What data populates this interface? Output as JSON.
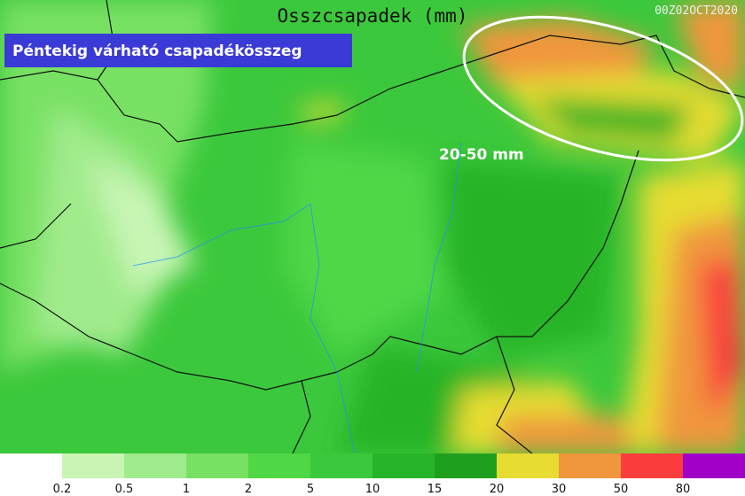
{
  "map": {
    "title": "Osszcsapadek (mm)",
    "timestamp": "00Z02OCT2020",
    "caption": "Péntekig várható csapadékösszeg",
    "annotation": "20-50 mm"
  },
  "legend": {
    "colors": [
      "#ffffff",
      "#c8f5b4",
      "#a0eb8c",
      "#78e164",
      "#50d746",
      "#3cc83c",
      "#28b428",
      "#1ea01e",
      "#e6dc32",
      "#f0963c",
      "#fa3c3c",
      "#a000c8"
    ],
    "labels": [
      0.2,
      0.5,
      1,
      2,
      5,
      10,
      15,
      20,
      30,
      50,
      80
    ]
  }
}
